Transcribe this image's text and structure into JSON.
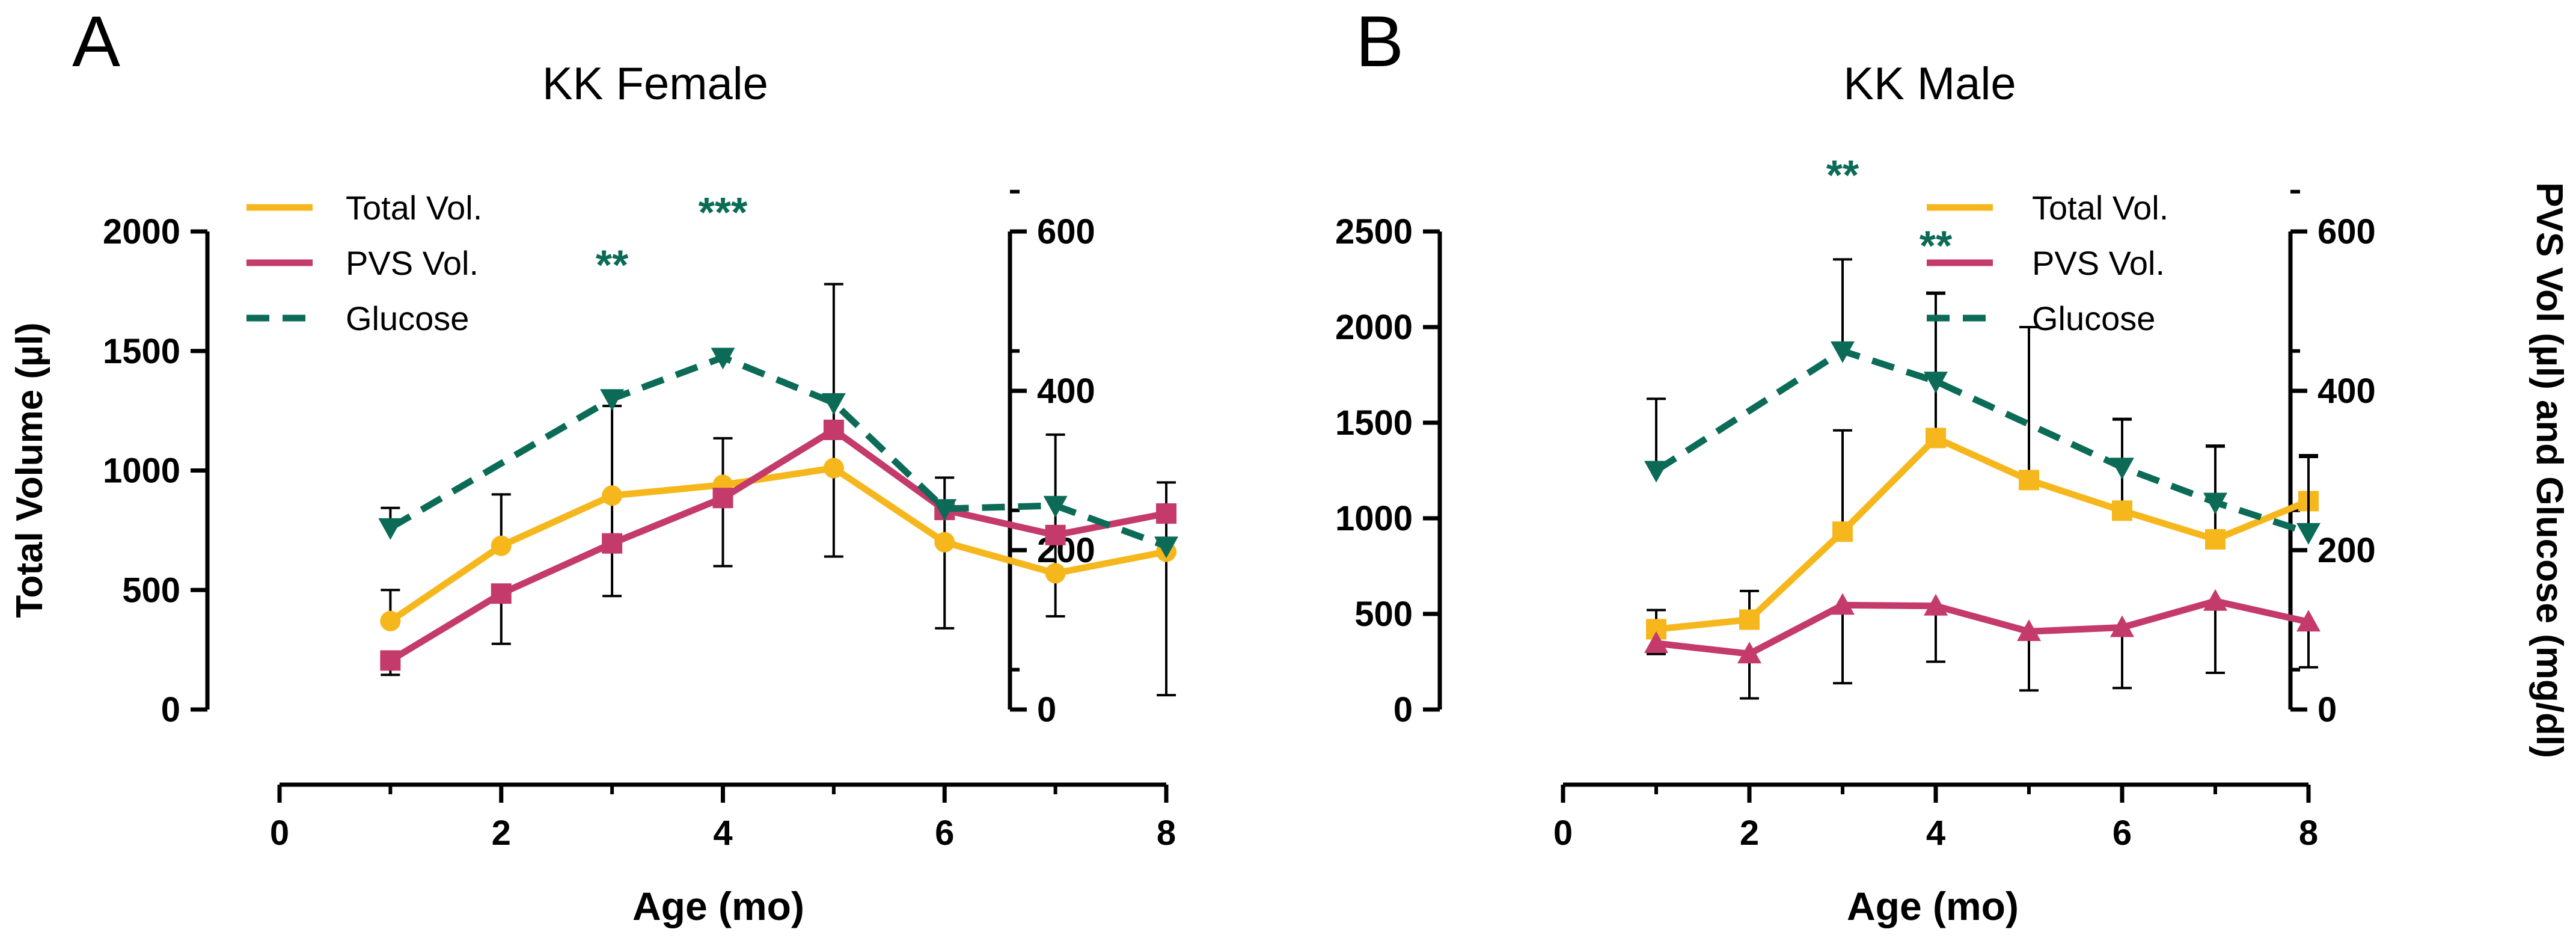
{
  "colors": {
    "total": "#F5B71C",
    "pvs": "#C43A6A",
    "glucose": "#0B6B57",
    "axis": "#000000"
  },
  "chart_data": [
    {
      "panel_label": "A",
      "title": "KK Female",
      "type": "line",
      "xlabel": "Age (mo)",
      "ylabel_left": "Total Volume (µl)",
      "ylabel_right": "",
      "xlim": [
        0,
        8
      ],
      "xticks": [
        "0",
        "2",
        "4",
        "6",
        "8"
      ],
      "ylim_left": [
        0,
        2000
      ],
      "yticks_left": [
        "0",
        "500",
        "1000",
        "1500",
        "2000"
      ],
      "ylim_right": [
        0,
        600
      ],
      "yticks_right": [
        "0",
        "200",
        "400",
        "600"
      ],
      "legend": {
        "position": "top-left",
        "entries": [
          "Total Vol.",
          "PVS Vol.",
          "Glucose"
        ]
      },
      "series": [
        {
          "name": "Total Vol.",
          "axis": "left",
          "style": "solid",
          "marker": "circle",
          "x": [
            1,
            2,
            3,
            4,
            5,
            6,
            7,
            8
          ],
          "values": [
            370,
            685,
            895,
            940,
            1010,
            700,
            570,
            660
          ],
          "err_up": [
            130,
            215,
            375,
            195,
            770,
            270,
            580,
            290
          ],
          "err_down": [
            0,
            0,
            420,
            340,
            370,
            360,
            180,
            600
          ]
        },
        {
          "name": "PVS Vol.",
          "axis": "left",
          "style": "solid",
          "marker": "square",
          "x": [
            1,
            2,
            3,
            4,
            5,
            6,
            7,
            8
          ],
          "values": [
            205,
            485,
            695,
            885,
            1170,
            835,
            730,
            820
          ],
          "err_up": [
            0,
            0,
            0,
            0,
            0,
            0,
            0,
            0
          ],
          "err_down": [
            60,
            210,
            0,
            0,
            0,
            0,
            0,
            0
          ]
        },
        {
          "name": "Glucose",
          "axis": "right",
          "style": "dashed",
          "marker": "triangle-down",
          "x": [
            1,
            2,
            3,
            4,
            5,
            6,
            7,
            8
          ],
          "values": [
            228,
            0,
            390,
            442,
            385,
            252,
            256,
            205
          ],
          "err_up": [
            25,
            0,
            0,
            0,
            0,
            0,
            0,
            0
          ],
          "err_down": [
            0,
            0,
            0,
            0,
            0,
            0,
            0,
            0
          ],
          "skip": [
            2
          ]
        }
      ],
      "annotations": [
        {
          "text": "**",
          "x": 3,
          "y": 1800
        },
        {
          "text": "***",
          "x": 4,
          "y": 2020
        }
      ]
    },
    {
      "panel_label": "B",
      "title": "KK Male",
      "type": "line",
      "xlabel": "Age (mo)",
      "ylabel_left": "",
      "ylabel_right": "PVS Vol (µl) and Glucose (mg/dl)",
      "xlim": [
        0,
        8
      ],
      "xticks": [
        "0",
        "2",
        "4",
        "6",
        "8"
      ],
      "ylim_left": [
        0,
        2500
      ],
      "yticks_left": [
        "0",
        "500",
        "1000",
        "1500",
        "2000",
        "2500"
      ],
      "ylim_right": [
        0,
        600
      ],
      "yticks_right": [
        "0",
        "200",
        "400",
        "600"
      ],
      "legend": {
        "position": "top-right",
        "entries": [
          "Total Vol.",
          "PVS Vol.",
          "Glucose"
        ]
      },
      "series": [
        {
          "name": "Total Vol.",
          "axis": "left",
          "style": "solid",
          "marker": "square",
          "x": [
            1,
            2,
            3,
            4,
            5,
            6,
            7,
            8
          ],
          "values": [
            420,
            470,
            930,
            1420,
            1200,
            1040,
            890,
            1090
          ],
          "err_up": [
            100,
            150,
            530,
            760,
            800,
            480,
            490,
            240
          ],
          "err_down": [
            130,
            0,
            0,
            0,
            0,
            0,
            0,
            0
          ]
        },
        {
          "name": "PVS Vol.",
          "axis": "right",
          "style": "solid",
          "marker": "triangle-up",
          "x": [
            1,
            2,
            3,
            4,
            5,
            6,
            7,
            8
          ],
          "values": [
            83,
            70,
            131,
            130,
            98,
            103,
            136,
            110
          ],
          "err_up": [
            0,
            0,
            0,
            0,
            0,
            0,
            0,
            0
          ],
          "err_down": [
            12,
            56,
            98,
            70,
            74,
            76,
            90,
            57
          ]
        },
        {
          "name": "Glucose",
          "axis": "right",
          "style": "dashed",
          "marker": "triangle-down",
          "x": [
            1,
            2,
            3,
            4,
            5,
            6,
            7,
            8
          ],
          "values": [
            300,
            0,
            450,
            412,
            0,
            304,
            260,
            222
          ],
          "err_up": [
            90,
            0,
            115,
            110,
            480,
            60,
            70,
            95
          ],
          "err_down": [
            0,
            0,
            0,
            0,
            0,
            0,
            0,
            0
          ],
          "skip": [
            2,
            5
          ]
        }
      ],
      "annotations": [
        {
          "text": "**",
          "x": 3,
          "y": 2720
        },
        {
          "text": "**",
          "x": 4,
          "y": 2350
        }
      ]
    }
  ]
}
